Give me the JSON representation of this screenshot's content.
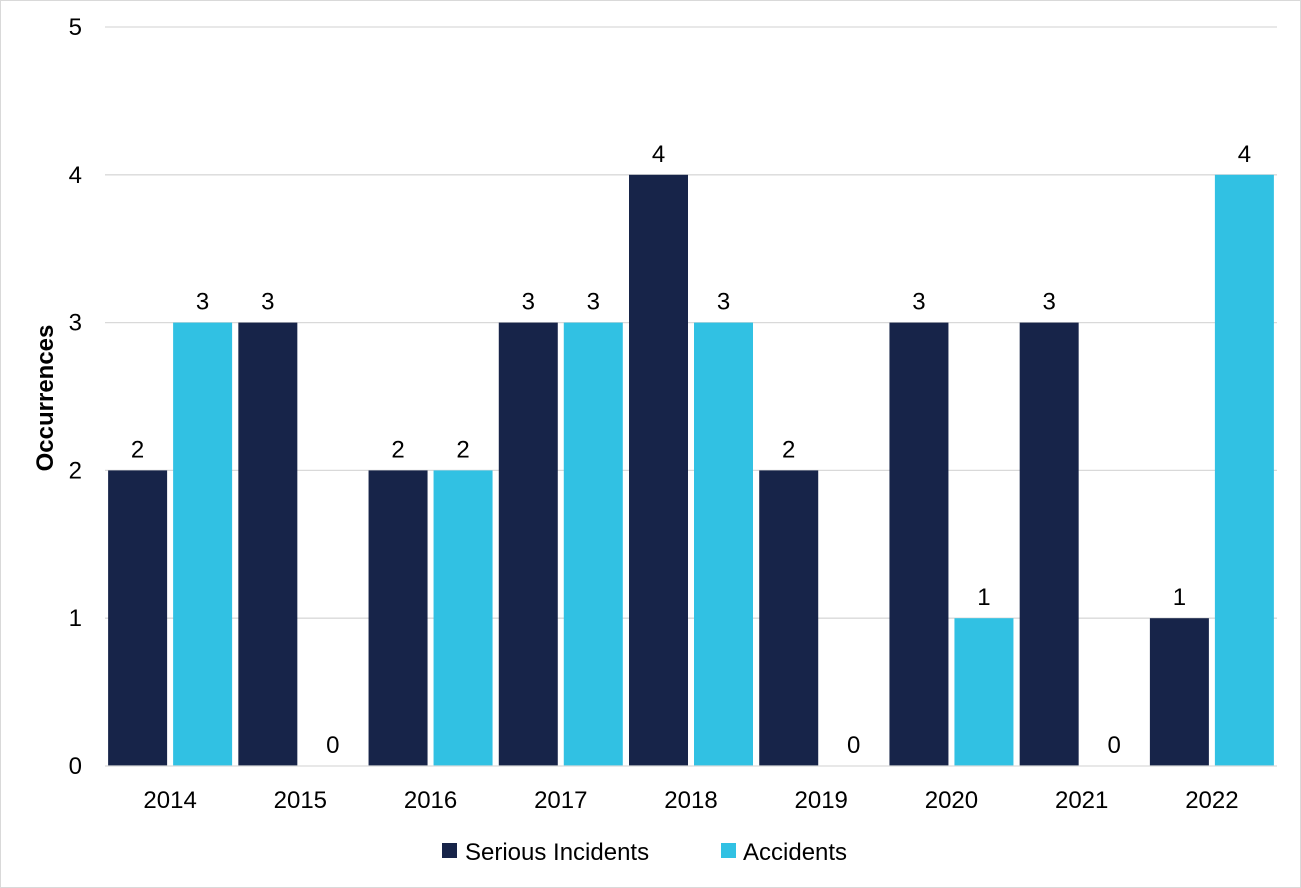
{
  "chart_data": {
    "type": "bar",
    "title": "",
    "xlabel": "",
    "ylabel": "Occurrences",
    "ylim": [
      0,
      5
    ],
    "yticks": [
      0,
      1,
      2,
      3,
      4,
      5
    ],
    "grid": true,
    "legend_position": "bottom",
    "categories": [
      "2014",
      "2015",
      "2016",
      "2017",
      "2018",
      "2019",
      "2020",
      "2021",
      "2022"
    ],
    "series": [
      {
        "name": "Serious Incidents",
        "color": "#172449",
        "values": [
          2,
          3,
          2,
          3,
          4,
          2,
          3,
          3,
          1
        ]
      },
      {
        "name": "Accidents",
        "color": "#31c1e3",
        "values": [
          3,
          0,
          2,
          3,
          3,
          0,
          1,
          0,
          4
        ]
      }
    ]
  }
}
